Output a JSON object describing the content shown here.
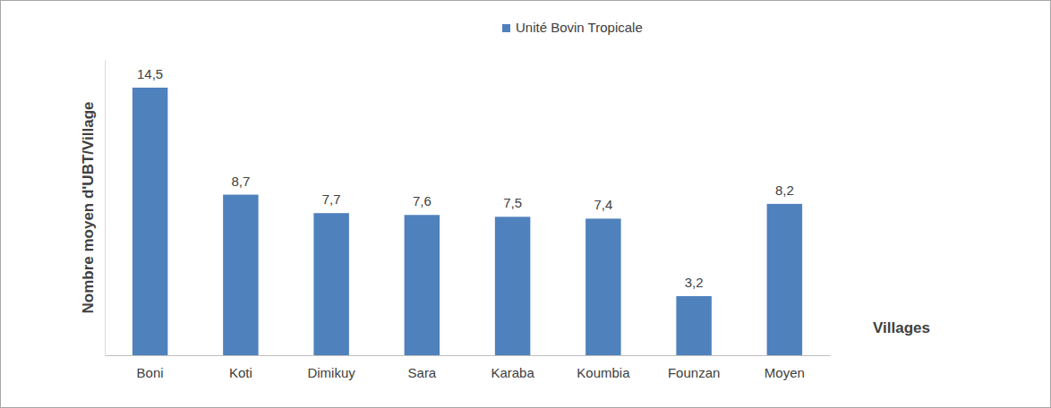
{
  "chart_data": {
    "type": "bar",
    "categories": [
      "Boni",
      "Koti",
      "Dimikuy",
      "Sara",
      "Karaba",
      "Koumbia",
      "Founzan",
      "Moyen"
    ],
    "values": [
      14.5,
      8.7,
      7.7,
      7.6,
      7.5,
      7.4,
      3.2,
      8.2
    ],
    "value_labels": [
      "14,5",
      "8,7",
      "7,7",
      "7,6",
      "7,5",
      "7,4",
      "3,2",
      "8,2"
    ],
    "series_name": "Unité Bovin Tropicale",
    "color": "#4f81bd",
    "x_label": "Villages",
    "y_label": "Nombre moyen d'UBT/Village",
    "ylim": [
      0,
      16
    ],
    "legend": "top",
    "data_labels": true,
    "tick_labels": "x",
    "grid": false
  }
}
